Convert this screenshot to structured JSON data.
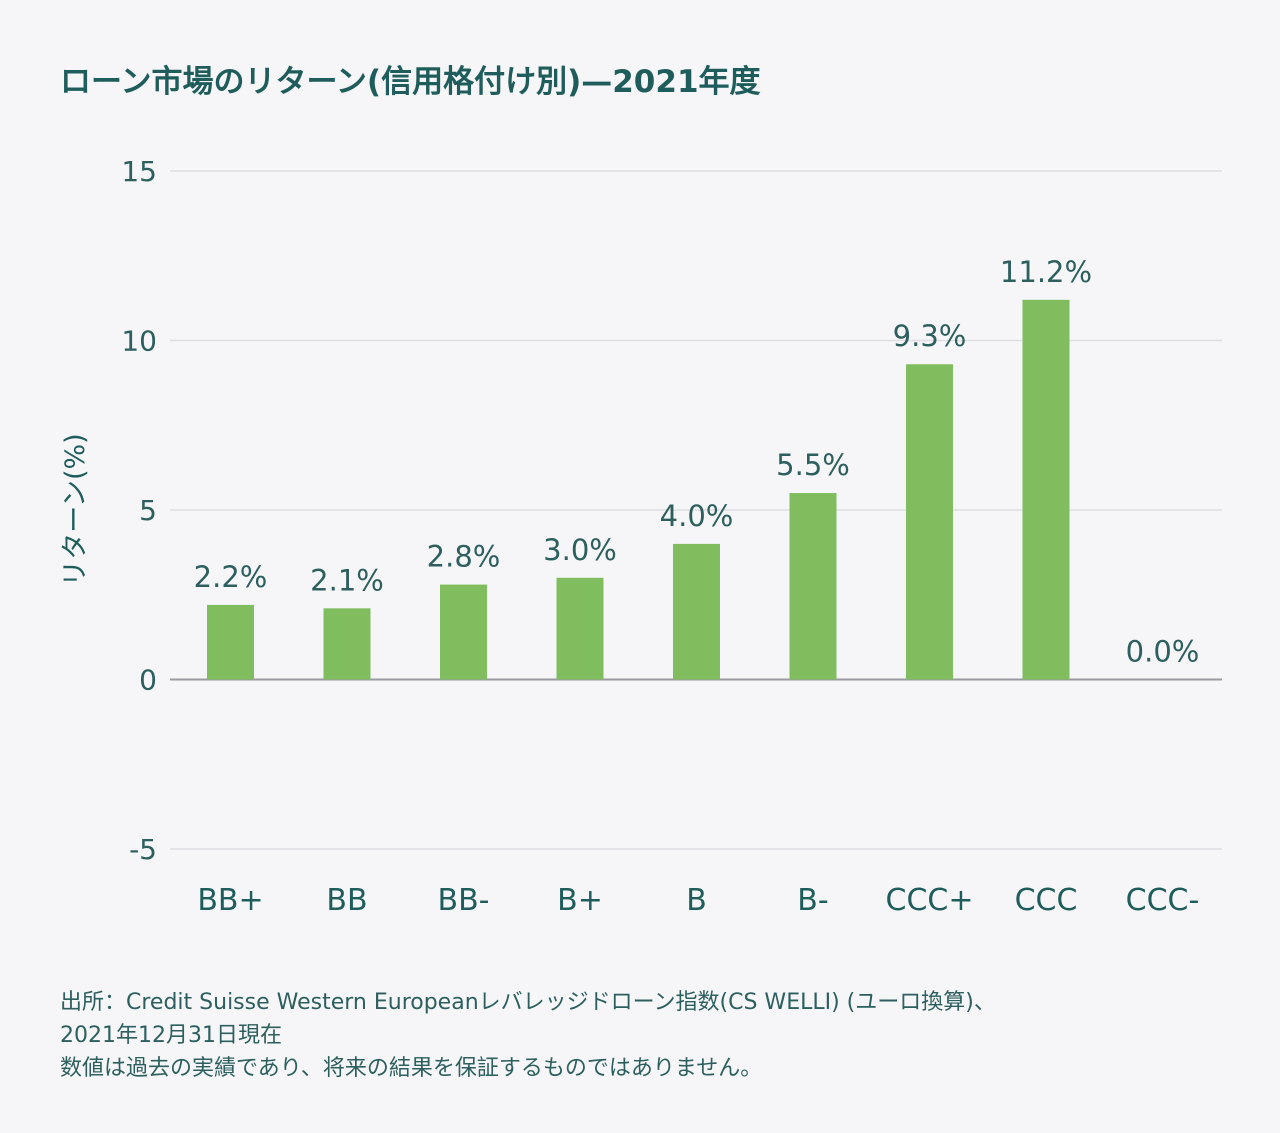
{
  "title": "ローン市場のリターン(信用格付け別)—2021年度",
  "colors": {
    "bar": "#80bd5e",
    "text": "#1f5d5c",
    "grid": "#dedee3",
    "zero": "#9a9aa2"
  },
  "chart_data": {
    "type": "bar",
    "title": "ローン市場のリターン(信用格付け別)—2021年度",
    "ylabel": "リターン(%)",
    "xlabel": "",
    "ylim": [
      -5,
      15
    ],
    "yticks": [
      15,
      10,
      5,
      0,
      -5
    ],
    "ytick_labels": [
      "15",
      "10",
      "5",
      "0",
      "-5"
    ],
    "grid": true,
    "categories": [
      "BB+",
      "BB",
      "BB-",
      "B+",
      "B",
      "B-",
      "CCC+",
      "CCC",
      "CCC-"
    ],
    "values": [
      2.2,
      2.1,
      2.8,
      3.0,
      4.0,
      5.5,
      9.3,
      11.2,
      0.0
    ],
    "data_labels": [
      "2.2%",
      "2.1%",
      "2.8%",
      "3.0%",
      "4.0%",
      "5.5%",
      "9.3%",
      "11.2%",
      "0.0%"
    ]
  },
  "footnote": {
    "line1": "出所：Credit Suisse Western Europeanレバレッジドローン指数(CS WELLI) (ユーロ換算)、",
    "line2": "2021年12月31日現在",
    "line3": "数値は過去の実績であり、将来の結果を保証するものではありません。"
  }
}
